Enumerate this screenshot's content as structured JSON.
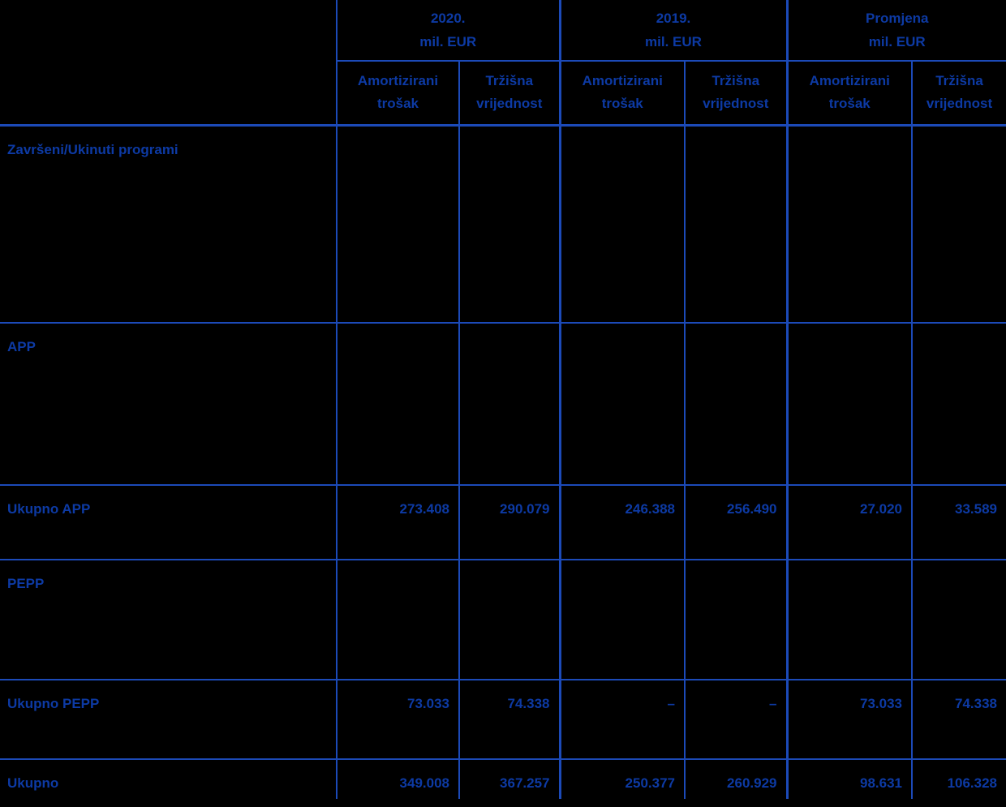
{
  "colors": {
    "background": "#000000",
    "text_blue": "#0d3aa4",
    "grid_blue": "#1c4ab8"
  },
  "header": {
    "groups": [
      {
        "title": "2020.",
        "unit": "mil. EUR"
      },
      {
        "title": "2019.",
        "unit": "mil. EUR"
      },
      {
        "title": "Promjena",
        "unit": "mil. EUR"
      }
    ],
    "subcolumns": [
      {
        "line1": "Amortizirani",
        "line2": "trošak"
      },
      {
        "line1": "Tržišna",
        "line2": "vrijednost"
      }
    ]
  },
  "rows": [
    {
      "type": "section",
      "label": "Završeni/Ukinuti programi",
      "values": [
        "",
        "",
        "",
        "",
        "",
        ""
      ]
    },
    {
      "type": "section",
      "label": "APP",
      "values": [
        "",
        "",
        "",
        "",
        "",
        ""
      ]
    },
    {
      "type": "total",
      "label": "Ukupno APP",
      "values": [
        "273.408",
        "290.079",
        "246.388",
        "256.490",
        "27.020",
        "33.589"
      ]
    },
    {
      "type": "section",
      "label": "PEPP",
      "values": [
        "",
        "",
        "",
        "",
        "",
        ""
      ]
    },
    {
      "type": "total",
      "label": "Ukupno PEPP",
      "values": [
        "73.033",
        "74.338",
        "–",
        "–",
        "73.033",
        "74.338"
      ]
    },
    {
      "type": "total",
      "label": "Ukupno",
      "values": [
        "349.008",
        "367.257",
        "250.377",
        "260.929",
        "98.631",
        "106.328"
      ]
    }
  ]
}
